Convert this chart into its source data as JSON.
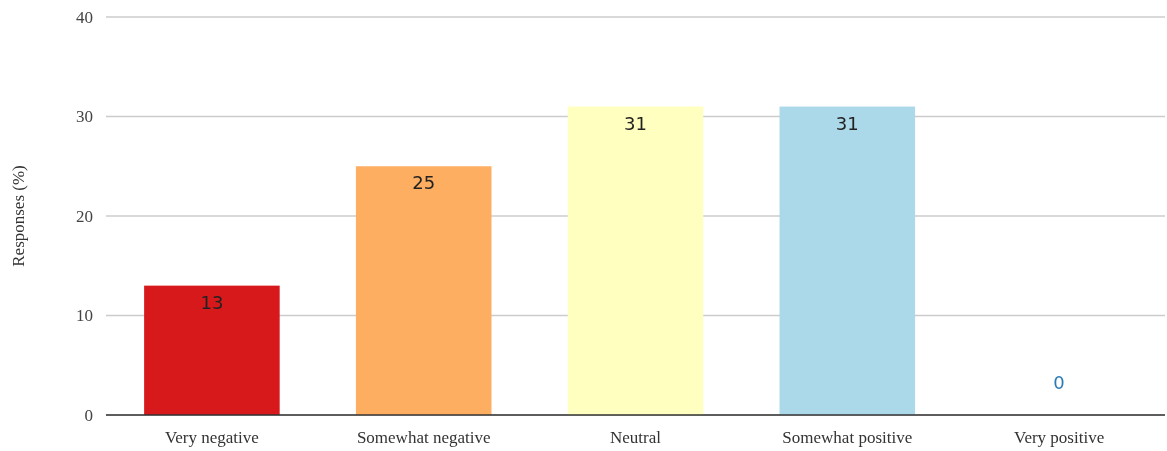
{
  "chart_data": {
    "type": "bar",
    "ylabel": "Responses (%)",
    "categories": [
      "Very negative",
      "Somewhat negative",
      "Neutral",
      "Somewhat positive",
      "Very positive"
    ],
    "values": [
      13,
      25,
      31,
      31,
      0
    ],
    "colors": [
      "#d7191c",
      "#fdae61",
      "#ffffbf",
      "#abd9e9",
      "#2c7bb6"
    ],
    "ylim": [
      0,
      40
    ],
    "yticks": [
      0,
      10,
      20,
      30,
      40
    ],
    "grid": "y",
    "data_labels": true
  }
}
